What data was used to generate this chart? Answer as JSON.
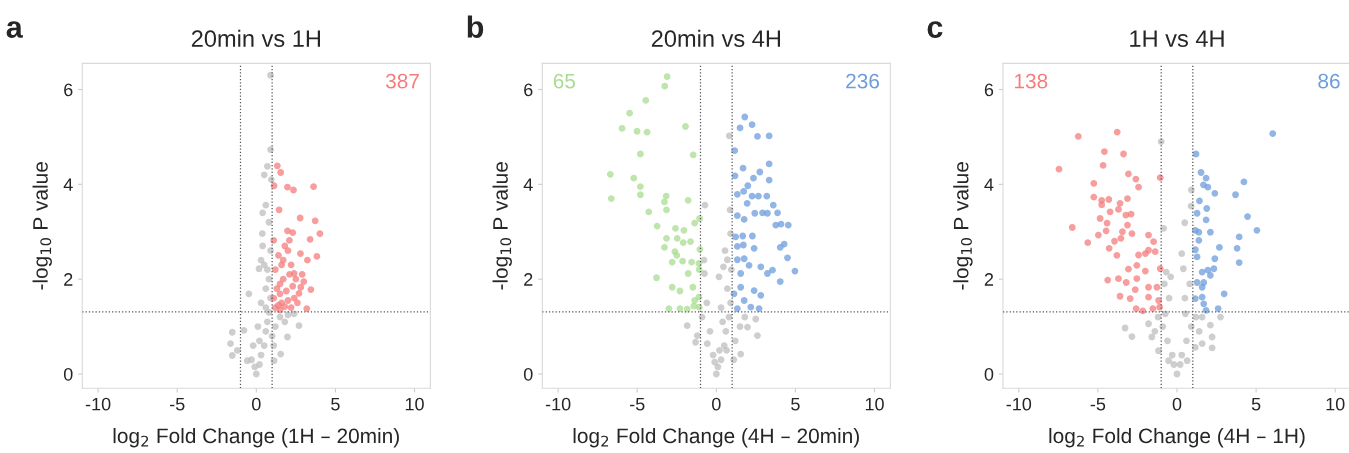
{
  "chart_data": [
    {
      "type": "scatter",
      "title": "20min vs 1H",
      "xlabel": "log$_{2}$ Fold Change (1H – 20min)",
      "ylabel": "-log$_{10}$ P value",
      "xlim": [
        -11,
        11
      ],
      "ylim": [
        -0.3,
        6.55
      ],
      "xticks": [
        -10,
        -5,
        0,
        5,
        10
      ],
      "yticks": [
        0,
        2,
        4,
        6
      ],
      "marker": "circle",
      "annotations": [
        "a",
        "387"
      ],
      "ref_lines": [
        {
          "axis": "x",
          "value": -1,
          "line_style": "dotted"
        },
        {
          "axis": "x",
          "value": 1,
          "line_style": "dotted"
        },
        {
          "axis": "y",
          "value": 1.31,
          "line_style": "dotted"
        }
      ],
      "series": [
        {
          "color": "#bdbdbd",
          "x": [
            0.9,
            0.9,
            0.7,
            0.6,
            0.38,
            0.3,
            0.17,
            -0.47,
            0,
            -0.57,
            -1.52,
            -1.63,
            -1.52,
            -1.2,
            -0.78,
            2.39,
            2.7,
            1.97,
            1.54,
            1.12,
            0.3,
            0.5,
            0.6,
            0.7,
            0.8,
            0.9,
            0.6,
            0.8,
            0.5,
            0.9,
            1.0,
            1.2,
            1.5,
            0.2,
            -0.3,
            -0.2,
            0.1,
            0.3,
            -0.1,
            1.8,
            2.0,
            0.4,
            0.8,
            0.95,
            0.5,
            0.4,
            0.7,
            1.1,
            0.2,
            0.6
          ],
          "values": [
            6.3,
            4.73,
            4.38,
            3.56,
            2.96,
            2.4,
            2.22,
            1.69,
            0,
            0.28,
            0.88,
            0.64,
            0.39,
            0.5,
            0.92,
            1.27,
            1.02,
            0.78,
            0.42,
            0.28,
            0.4,
            0.6,
            0.9,
            1.1,
            1.3,
            1.6,
            1.8,
            2.0,
            2.3,
            2.6,
            0.8,
            1.0,
            1.2,
            0.2,
            0.3,
            0.6,
            1.0,
            1.5,
            0.15,
            1.1,
            1.25,
            3.4,
            3.2,
            4.1,
            4.2,
            2.7,
            2.2,
            0.6,
            0.7,
            1.4
          ]
        },
        {
          "color": "#f47c7c",
          "x": [
            1.33,
            1.54,
            1.12,
            1.97,
            2.35,
            3.62,
            1.44,
            2.77,
            3.72,
            4.02,
            1.97,
            2.3,
            3.4,
            2.09,
            1.1,
            2.79,
            3.23,
            3.83,
            1.7,
            2.39,
            2.81,
            3.45,
            3.19,
            1.5,
            1.2,
            1.4,
            1.6,
            1.8,
            2.0,
            2.2,
            2.4,
            2.6,
            1.3,
            1.5,
            1.7,
            1.9,
            2.1,
            2.3,
            1.2,
            1.6,
            2.0,
            2.5,
            1.4,
            1.8,
            2.2,
            2.9,
            1.1,
            1.5,
            2.7,
            3.0
          ],
          "values": [
            4.39,
            4.25,
            3.97,
            3.94,
            3.88,
            3.95,
            3.46,
            3.29,
            3.23,
            2.96,
            3.02,
            2.98,
            2.84,
            2.82,
            2.82,
            2.54,
            2.4,
            2.48,
            2.4,
            2.12,
            1.83,
            1.78,
            1.38,
            1.69,
            1.4,
            1.45,
            1.5,
            1.42,
            1.55,
            1.4,
            1.6,
            1.5,
            1.8,
            1.9,
            2.0,
            1.75,
            2.1,
            1.85,
            2.2,
            2.3,
            2.6,
            2.0,
            2.5,
            2.7,
            2.3,
            2.1,
            1.6,
            1.35,
            1.7,
            1.95
          ]
        }
      ]
    },
    {
      "type": "scatter",
      "title": "20min vs 4H",
      "xlabel": "log$_{2}$ Fold Change (4H – 20min)",
      "ylabel": "-log$_{10}$ P value",
      "xlim": [
        -11,
        11
      ],
      "ylim": [
        -0.3,
        6.55
      ],
      "xticks": [
        -10,
        -5,
        0,
        5,
        10
      ],
      "yticks": [
        0,
        2,
        4,
        6
      ],
      "marker": "circle",
      "annotations": [
        "b",
        "65",
        "236"
      ],
      "ref_lines": [
        {
          "axis": "x",
          "value": -1,
          "line_style": "dotted"
        },
        {
          "axis": "x",
          "value": 1,
          "line_style": "dotted"
        },
        {
          "axis": "y",
          "value": 1.31,
          "line_style": "dotted"
        }
      ],
      "series": [
        {
          "color": "#bdbdbd",
          "x": [
            0.82,
            -0.72,
            0.87,
            0.9,
            0.7,
            -0.78,
            -0.75,
            0.17,
            0.45,
            0,
            -1.84,
            -1.31,
            -1.2,
            -0.57,
            2.49,
            2.6,
            1.97,
            1.54,
            0.3,
            0.5,
            0.6,
            0.8,
            0.9,
            0.7,
            0.4,
            0.2,
            -0.2,
            -0.4,
            0.1,
            0.3,
            1.2,
            1.5,
            1.8,
            -0.9,
            -0.6,
            0.95,
            0.55,
            1.1,
            -0.1,
            0.65
          ],
          "values": [
            5.02,
            3.56,
            3.46,
            2.96,
            2.41,
            2.4,
            2.12,
            2.05,
            2.26,
            0,
            1.02,
            0.67,
            0.81,
            0.64,
            1.16,
            0.81,
            0.99,
            0.42,
            0.3,
            0.6,
            0.9,
            1.2,
            1.5,
            1.8,
            1.1,
            0.5,
            0.4,
            0.9,
            0.15,
            1.4,
            0.7,
            1.0,
            1.2,
            1.2,
            1.5,
            2.2,
            2.6,
            0.3,
            0.25,
            0.5
          ]
        },
        {
          "color": "#a8dc90",
          "x": [
            -3.11,
            -3.26,
            -4.46,
            -5.48,
            -5.96,
            -5.01,
            -4.38,
            -1.95,
            -4.8,
            -1.46,
            -6.7,
            -5.22,
            -6.64,
            -4.8,
            -4.8,
            -3.17,
            -1.78,
            -3.28,
            -3.15,
            -4.27,
            -3.74,
            -1.06,
            -1.37,
            -2.58,
            -2.05,
            -3.15,
            -2.47,
            -2.09,
            -1.63,
            -3.28,
            -1.04,
            -2.62,
            -2.5,
            -2.79,
            -2.13,
            -1.56,
            -1.1,
            -1.08,
            -1.78,
            -3.78,
            -2.79,
            -1.48,
            -2.3,
            -1.1,
            -1.37,
            -3.0,
            -2.3,
            -1.84,
            -1.42,
            -1.08
          ],
          "values": [
            6.27,
            6.07,
            5.77,
            5.5,
            5.18,
            5.12,
            5.1,
            5.22,
            4.64,
            4.62,
            4.21,
            4.13,
            3.7,
            3.95,
            3.78,
            3.75,
            3.66,
            3.63,
            3.46,
            3.42,
            3.12,
            3.28,
            3.18,
            3.07,
            3.03,
            2.86,
            2.86,
            2.77,
            2.79,
            2.67,
            2.63,
            2.58,
            2.5,
            2.36,
            2.38,
            2.36,
            2.33,
            2.2,
            2.12,
            2.03,
            1.83,
            1.83,
            1.75,
            1.62,
            1.55,
            1.38,
            1.38,
            1.37,
            1.43,
            1.41
          ]
        },
        {
          "color": "#6c9cdc",
          "x": [
            1.8,
            2.26,
            1.5,
            2.6,
            3.34,
            1.16,
            3.34,
            1.69,
            2.75,
            1.18,
            2.35,
            3.34,
            1.99,
            1.73,
            1.33,
            2.26,
            2.66,
            3.19,
            1.95,
            3.6,
            2.43,
            2.92,
            3.23,
            3.87,
            1.33,
            1.76,
            3.76,
            4.55,
            4.09,
            1.67,
            2.28,
            1.22,
            4.29,
            4.04,
            1.33,
            1.71,
            2.39,
            4.5,
            1.33,
            1.76,
            2.07,
            2.81,
            3.55,
            4.97,
            1.54,
            3.23,
            4.04,
            1.54,
            2.39,
            2.81,
            1.12,
            1.76,
            2.18,
            2.7,
            1.33
          ],
          "values": [
            5.42,
            5.26,
            5.19,
            5.01,
            5.02,
            4.71,
            4.43,
            4.34,
            4.26,
            4.18,
            4.13,
            4.09,
            3.97,
            3.85,
            3.79,
            3.75,
            3.75,
            3.75,
            3.6,
            3.56,
            3.39,
            3.4,
            3.39,
            3.4,
            3.34,
            3.26,
            3.14,
            3.14,
            3.16,
            2.91,
            2.91,
            2.89,
            2.74,
            2.67,
            2.69,
            2.72,
            2.65,
            2.45,
            2.41,
            2.43,
            2.29,
            2.26,
            2.19,
            2.17,
            2.12,
            2.12,
            1.95,
            1.83,
            1.76,
            1.66,
            1.69,
            1.55,
            1.41,
            1.38,
            1.38
          ]
        }
      ]
    },
    {
      "type": "scatter",
      "title": "1H vs 4H",
      "xlabel": "log$_{2}$ Fold Change (4H – 1H)",
      "ylabel": "-log$_{10}$ P value",
      "xlim": [
        -11,
        11
      ],
      "ylim": [
        -0.3,
        6.55
      ],
      "xticks": [
        -10,
        -5,
        0,
        5,
        10
      ],
      "yticks": [
        0,
        2,
        4,
        6
      ],
      "marker": "circle",
      "annotations": [
        "c",
        "138",
        "86"
      ],
      "ref_lines": [
        {
          "axis": "x",
          "value": -1,
          "line_style": "dotted"
        },
        {
          "axis": "x",
          "value": 1,
          "line_style": "dotted"
        },
        {
          "axis": "y",
          "value": 1.31,
          "line_style": "dotted"
        }
      ],
      "series": [
        {
          "color": "#bdbdbd",
          "x": [
            -1.0,
            0.91,
            0.89,
            0.49,
            -0.85,
            0.3,
            0.4,
            -0.68,
            -0.4,
            0,
            -1.8,
            -3.28,
            -2.85,
            -1.59,
            -1.17,
            -0.53,
            0.64,
            1.16,
            1.59,
            2.22,
            2.11,
            2.22,
            2.75,
            1.59,
            -0.74,
            0.53,
            -0.3,
            -0.6,
            -0.9,
            -1.2,
            0.3,
            0.6,
            0.9,
            1.2,
            -0.2,
            0.2,
            -1.4,
            1.4,
            -0.5,
            0.5,
            -0.8,
            0.8
          ],
          "values": [
            4.9,
            3.88,
            3.54,
            3.19,
            3.07,
            2.54,
            2.22,
            2.15,
            2.05,
            0,
            1.06,
            0.97,
            0.79,
            0.78,
            0.49,
            0.28,
            0.28,
            0.56,
            0.64,
            0.78,
            1.03,
            0.55,
            1.2,
            1.2,
            1.27,
            1.27,
            0.4,
            0.7,
            1.0,
            1.2,
            0.4,
            0.7,
            1.0,
            1.2,
            0.2,
            0.2,
            0.9,
            0.9,
            1.6,
            1.6,
            1.9,
            1.9
          ]
        },
        {
          "color": "#f47c7c",
          "x": [
            -6.24,
            -3.78,
            -7.46,
            -4.59,
            -3.38,
            -4.67,
            -3.07,
            -2.6,
            -2.43,
            -1.06,
            -5.26,
            -5.26,
            -4.76,
            -4.31,
            -3.13,
            -3.6,
            -4.76,
            -4.23,
            -3.7,
            -3.23,
            -2.9,
            -4.86,
            -3.13,
            -4.42,
            -6.62,
            -4.48,
            -3.45,
            -2.85,
            -4.97,
            -1.8,
            -5.64,
            -3.95,
            -3.55,
            -1.48,
            -4.29,
            -2.43,
            -1.8,
            -1.38,
            -2.0,
            -3.8,
            -2.54,
            -3.07,
            -2.0,
            -1.06,
            -4.38,
            -3.7,
            -2.54,
            -1.8,
            -1.27,
            -3.21,
            -2.64,
            -3.6,
            -2.96,
            -1.8,
            -1.16,
            -2.58,
            -2.16,
            -1.53,
            -1.1
          ],
          "values": [
            5.01,
            5.1,
            4.32,
            4.69,
            4.64,
            4.4,
            4.22,
            4.11,
            3.94,
            4.14,
            4.02,
            3.73,
            3.66,
            3.68,
            3.7,
            3.6,
            3.57,
            3.42,
            3.47,
            3.35,
            3.37,
            3.28,
            3.14,
            3.18,
            3.09,
            3.02,
            3.0,
            2.96,
            2.93,
            2.93,
            2.77,
            2.8,
            2.86,
            2.79,
            2.65,
            2.51,
            2.61,
            2.58,
            2.54,
            2.5,
            2.29,
            2.21,
            2.17,
            2.22,
            1.98,
            2.01,
            2.01,
            1.83,
            1.83,
            1.93,
            1.78,
            1.64,
            1.59,
            1.62,
            1.55,
            1.38,
            1.33,
            1.38,
            1.41
          ]
        },
        {
          "color": "#6c9cdc",
          "x": [
            6.05,
            1.2,
            1.52,
            1.84,
            4.23,
            1.67,
            1.95,
            2.39,
            3.7,
            1.42,
            1.88,
            4.46,
            1.27,
            1.84,
            5.05,
            1.16,
            1.38,
            2.11,
            3.93,
            1.38,
            2.68,
            3.8,
            1.16,
            1.27,
            2.39,
            3.93,
            1.59,
            1.95,
            2.33,
            1.69,
            1.27,
            2.11,
            1.59,
            2.98,
            1.16,
            1.59,
            1.69,
            2.6,
            1.84
          ],
          "values": [
            5.07,
            4.64,
            4.25,
            4.13,
            4.05,
            3.99,
            3.94,
            3.81,
            3.78,
            3.65,
            3.49,
            3.32,
            3.39,
            3.25,
            3.03,
            3.03,
            2.99,
            2.99,
            2.89,
            2.82,
            2.67,
            2.65,
            2.62,
            2.47,
            2.43,
            2.35,
            2.15,
            2.19,
            2.22,
            1.93,
            1.93,
            2.08,
            1.83,
            1.69,
            1.59,
            1.62,
            1.48,
            1.38,
            1.34
          ]
        }
      ]
    }
  ]
}
